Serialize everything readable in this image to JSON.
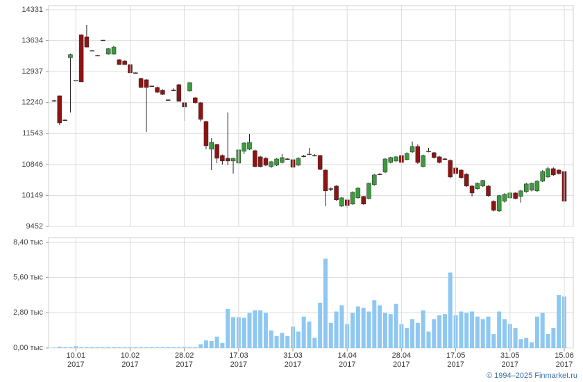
{
  "chart_data": [
    {
      "type": "candlestick",
      "open": [
        12285,
        12393,
        11850,
        13250,
        12740,
        13768,
        13721,
        13412,
        13302,
        13645,
        13331,
        13331,
        13206,
        13175,
        13096,
        12912,
        12784,
        12753,
        12615,
        12580,
        12518,
        12303,
        12522,
        12643,
        12237,
        12502,
        12346,
        12237,
        11815,
        11190,
        11299,
        11049,
        10986,
        10924,
        10877,
        11143,
        11190,
        11158,
        11018,
        10986,
        10799,
        10830,
        10892,
        10974,
        10955,
        10830,
        11036,
        11072,
        11052,
        11049,
        10720,
        10302,
        10361,
        9908,
        10049,
        9955,
        10095,
        10127,
        10080,
        10392,
        10630,
        10674,
        10892,
        10924,
        11049,
        10955,
        11127,
        11252,
        10799,
        11136,
        11112,
        11018,
        10973,
        10940,
        10768,
        10720,
        10627,
        10361,
        10299,
        10361,
        10361,
        10018,
        9799,
        10018,
        10095,
        10205,
        10127,
        10236,
        10267,
        10252,
        10470,
        10564,
        10752,
        10720,
        10689
      ],
      "high": [
        12300,
        12400,
        11860,
        13340,
        12750,
        13775,
        13987,
        13420,
        13310,
        13650,
        13470,
        13520,
        13220,
        13190,
        13110,
        12920,
        12800,
        12770,
        12620,
        12600,
        12540,
        12310,
        12560,
        12660,
        12250,
        12700,
        12360,
        12250,
        11830,
        11440,
        11310,
        11070,
        12018,
        11000,
        11190,
        11350,
        11533,
        11180,
        11040,
        11010,
        10930,
        10990,
        11080,
        10990,
        10980,
        11010,
        11060,
        11220,
        11080,
        11060,
        10740,
        10330,
        10380,
        10110,
        10070,
        10240,
        10330,
        10140,
        10440,
        10630,
        10650,
        10990,
        11020,
        11040,
        11070,
        11120,
        11362,
        11300,
        11070,
        11220,
        11130,
        11040,
        10990,
        10960,
        10790,
        10740,
        10650,
        10380,
        10440,
        10500,
        10380,
        10040,
        10160,
        10200,
        10230,
        10220,
        10270,
        10430,
        10440,
        10490,
        10720,
        10800,
        10780,
        10740,
        10700
      ],
      "low": [
        12260,
        11736,
        11830,
        12018,
        12725,
        12700,
        13480,
        13400,
        13290,
        13635,
        13320,
        13320,
        13090,
        13090,
        12900,
        12900,
        12570,
        11580,
        12600,
        12460,
        12410,
        12290,
        12500,
        12260,
        11830,
        12490,
        12220,
        11815,
        11190,
        10720,
        10877,
        10846,
        10830,
        10642,
        10860,
        11080,
        11170,
        10780,
        10780,
        10810,
        10770,
        10810,
        10870,
        10950,
        10760,
        10810,
        11010,
        11060,
        11030,
        10720,
        9908,
        10250,
        10030,
        9890,
        9861,
        9940,
        10080,
        9940,
        10060,
        10370,
        10610,
        10650,
        10870,
        10900,
        10870,
        10940,
        11110,
        10860,
        10780,
        11120,
        10980,
        10870,
        10950,
        10540,
        10620,
        10530,
        10340,
        10127,
        10280,
        10340,
        10120,
        9790,
        9780,
        9990,
        10070,
        10060,
        9990,
        10210,
        10240,
        10230,
        10450,
        10540,
        10590,
        10620,
        10000
      ],
      "close": [
        12275,
        11783,
        11840,
        13320,
        12735,
        12706,
        13487,
        13405,
        13298,
        13640,
        13456,
        13487,
        13096,
        13096,
        12909,
        12906,
        12580,
        12580,
        12609,
        12471,
        12424,
        12297,
        12514,
        12268,
        12143,
        12690,
        12237,
        11862,
        11268,
        11346,
        10986,
        10924,
        10924,
        10986,
        11174,
        11330,
        11346,
        10799,
        10799,
        10830,
        10908,
        10970,
        11002,
        10966,
        10783,
        10986,
        11030,
        11080,
        11046,
        10736,
        10252,
        10296,
        10049,
        10095,
        9924,
        10221,
        10314,
        9955,
        10424,
        10611,
        10624,
        10970,
        11002,
        11018,
        10892,
        11096,
        11252,
        10892,
        11049,
        11144,
        11002,
        10892,
        10967,
        10564,
        10642,
        10549,
        10361,
        10205,
        10424,
        10486,
        10143,
        9814,
        10143,
        10174,
        10205,
        10080,
        10252,
        10408,
        10424,
        10470,
        10689,
        10752,
        10611,
        10642,
        10018
      ],
      "ylim": [
        9452,
        14331
      ],
      "yticks": [
        9452,
        10149,
        10846,
        11543,
        12240,
        12937,
        13634,
        14331
      ],
      "up_color": "#3e9a3e",
      "down_color": "#8e1414",
      "grid": true
    },
    {
      "type": "bar",
      "categories": [
        null,
        null,
        null,
        null,
        "10.01\n2017",
        null,
        null,
        null,
        null,
        null,
        null,
        null,
        null,
        null,
        "10.02\n2017",
        null,
        null,
        null,
        null,
        null,
        null,
        null,
        null,
        null,
        "28.02\n2017",
        null,
        null,
        null,
        null,
        null,
        null,
        null,
        null,
        null,
        "17.03\n2017",
        null,
        null,
        null,
        null,
        null,
        null,
        null,
        null,
        null,
        "31.03\n2017",
        null,
        null,
        null,
        null,
        null,
        null,
        null,
        null,
        null,
        "14.04\n2017",
        null,
        null,
        null,
        null,
        null,
        null,
        null,
        null,
        null,
        "28.04\n2017",
        null,
        null,
        null,
        null,
        null,
        null,
        null,
        null,
        null,
        "17.05\n2017",
        null,
        null,
        null,
        null,
        null,
        null,
        null,
        null,
        null,
        "31.05\n2017",
        null,
        null,
        null,
        null,
        null,
        null,
        null,
        null,
        null,
        "15.06\n2017"
      ],
      "values": [
        0.03,
        0.1,
        0.05,
        0.05,
        0.15,
        0.05,
        0.05,
        0.05,
        0.05,
        0.05,
        0.05,
        0.05,
        0.05,
        0.05,
        0.05,
        0.05,
        0.05,
        0.05,
        0.05,
        0.05,
        0.05,
        0.05,
        0.05,
        0.05,
        0.08,
        0.05,
        0.05,
        0.3,
        0.6,
        0.55,
        0.9,
        0.4,
        3.1,
        2.45,
        2.45,
        2.4,
        2.8,
        3.0,
        3.0,
        2.8,
        1.4,
        0.95,
        1.2,
        0.95,
        1.7,
        1.3,
        2.5,
        2.1,
        0.8,
        3.6,
        7.1,
        2.0,
        2.9,
        3.4,
        1.9,
        2.8,
        3.3,
        3.2,
        2.9,
        3.8,
        3.4,
        2.8,
        2.7,
        3.5,
        1.9,
        1.6,
        2.3,
        2.0,
        3.0,
        1.3,
        2.3,
        2.6,
        2.7,
        6.0,
        2.6,
        2.9,
        2.8,
        2.9,
        2.5,
        2.3,
        2.5,
        1.1,
        2.9,
        2.3,
        1.9,
        1.6,
        0.7,
        0.8,
        0.45,
        2.5,
        2.8,
        1.1,
        1.6,
        4.2,
        4.1
      ],
      "color": "#8ec8f2",
      "ylim": [
        0,
        8.4
      ],
      "yticks": [
        {
          "value": 0,
          "label": "0,00 тыс"
        },
        {
          "value": 2.8,
          "label": "2,80 тыс"
        },
        {
          "value": 5.6,
          "label": "5,60 тыс"
        },
        {
          "value": 8.4,
          "label": "8,40 тыс"
        }
      ],
      "grid": true,
      "source": "© 1994–2025 Finmarket.ru"
    }
  ]
}
